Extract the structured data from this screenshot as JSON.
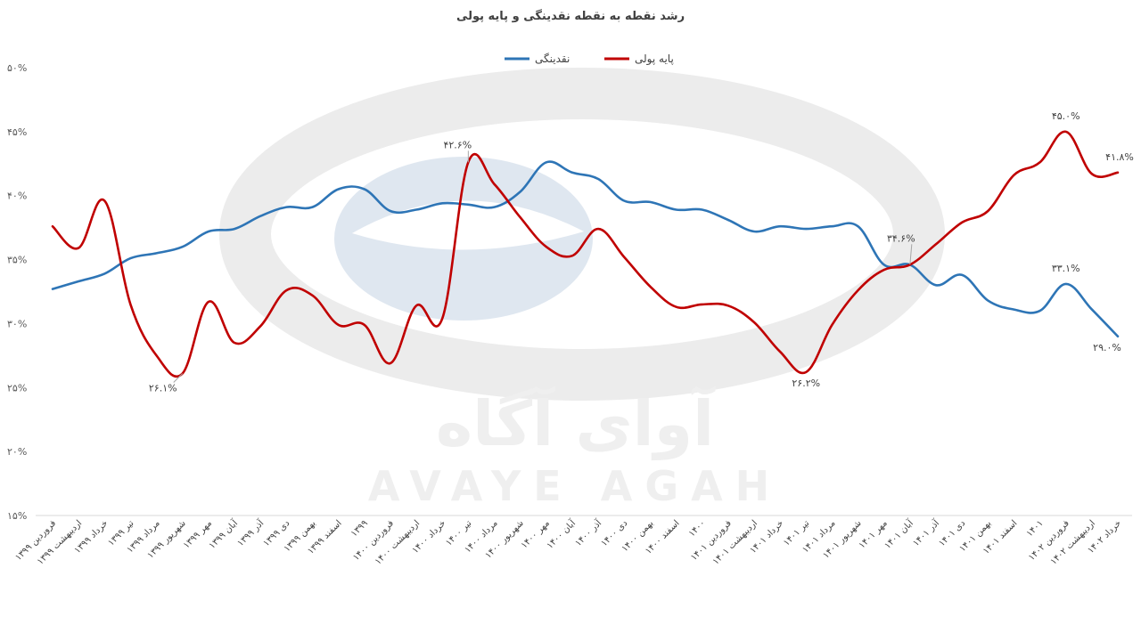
{
  "chart_data": {
    "type": "line",
    "title": "رشد نقطه به نقطه نقدینگی و پایه پولی",
    "watermark": {
      "fa": "آوای آگاه",
      "en": "AVAYE AGAH"
    },
    "ylim": [
      15,
      50
    ],
    "y_ticks": [
      15,
      20,
      25,
      30,
      35,
      40,
      45,
      50
    ],
    "y_tick_labels": [
      "۱۵%",
      "۲۰%",
      "۲۵%",
      "۳۰%",
      "۳۵%",
      "۴۰%",
      "۴۵%",
      "۵۰%"
    ],
    "grid": false,
    "legend_position": "top-center",
    "x": [
      "فروردین ۱۳۹۹",
      "اردیبهشت ۱۳۹۹",
      "خرداد ۱۳۹۹",
      "تیر ۱۳۹۹",
      "مرداد ۱۳۹۹",
      "شهریور ۱۳۹۹",
      "مهر ۱۳۹۹",
      "آبان ۱۳۹۹",
      "آذر ۱۳۹۹",
      "دی ۱۳۹۹",
      "بهمن ۱۳۹۹",
      "اسفند ۱۳۹۹",
      "۱۳۹۹",
      "فروردین ۱۴۰۰",
      "اردیبهشت ۱۴۰۰",
      "خرداد ۱۴۰۰",
      "تیر ۱۴۰۰",
      "مرداد ۱۴۰۰",
      "شهریور ۱۴۰۰",
      "مهر ۱۴۰۰",
      "آبان ۱۴۰۰",
      "آذر ۱۴۰۰",
      "دی ۱۴۰۰",
      "بهمن ۱۴۰۰",
      "اسفند ۱۴۰۰",
      "۱۴۰۰",
      "فروردین ۱۴۰۱",
      "اردیبهشت ۱۴۰۱",
      "خرداد ۱۴۰۱",
      "تیر ۱۴۰۱",
      "مرداد ۱۴۰۱",
      "شهریور ۱۴۰۱",
      "مهر ۱۴۰۱",
      "آبان ۱۴۰۱",
      "آذر ۱۴۰۱",
      "دی ۱۴۰۱",
      "بهمن ۱۴۰۱",
      "اسفند ۱۴۰۱",
      "۱۴۰۱",
      "فروردین ۱۴۰۲",
      "اردیبهشت ۱۴۰۲",
      "خرداد ۱۴۰۲"
    ],
    "series": [
      {
        "name": "نقدینگی",
        "color": "#2E75B6",
        "values": [
          32.7,
          33.3,
          33.9,
          35.1,
          35.5,
          36.0,
          37.2,
          37.4,
          38.4,
          39.1,
          39.1,
          40.5,
          40.5,
          38.8,
          38.9,
          39.4,
          39.3,
          39.1,
          40.3,
          42.6,
          41.8,
          41.3,
          39.6,
          39.5,
          38.9,
          38.9,
          38.1,
          37.2,
          37.6,
          37.4,
          37.6,
          37.6,
          34.6,
          34.6,
          33.0,
          33.8,
          31.8,
          31.1,
          31.0,
          33.1,
          31.1,
          29.0
        ],
        "labels": [
          {
            "index": 33,
            "text": "۳۴.۶%"
          },
          {
            "index": 39,
            "text": "۳۳.۱%"
          },
          {
            "index": 41,
            "text": "۲۹.۰%"
          }
        ]
      },
      {
        "name": "پایه پولی",
        "color": "#C00000",
        "values": [
          37.6,
          35.9,
          39.6,
          31.5,
          27.5,
          26.1,
          31.7,
          28.5,
          29.8,
          32.6,
          32.2,
          29.9,
          29.9,
          26.9,
          31.4,
          30.4,
          42.6,
          40.9,
          38.3,
          36.0,
          35.3,
          37.4,
          35.2,
          32.9,
          31.3,
          31.5,
          31.4,
          30.1,
          27.8,
          26.2,
          29.9,
          32.6,
          34.2,
          34.6,
          36.2,
          37.9,
          38.8,
          41.6,
          42.6,
          45.0,
          41.7,
          41.8
        ],
        "labels": [
          {
            "index": 5,
            "text": "۲۶.۱%"
          },
          {
            "index": 16,
            "text": "۴۲.۶%"
          },
          {
            "index": 29,
            "text": "۲۶.۲%"
          },
          {
            "index": 39,
            "text": "۴۵.۰%"
          },
          {
            "index": 41,
            "text": "۴۱.۸%"
          }
        ]
      }
    ]
  }
}
